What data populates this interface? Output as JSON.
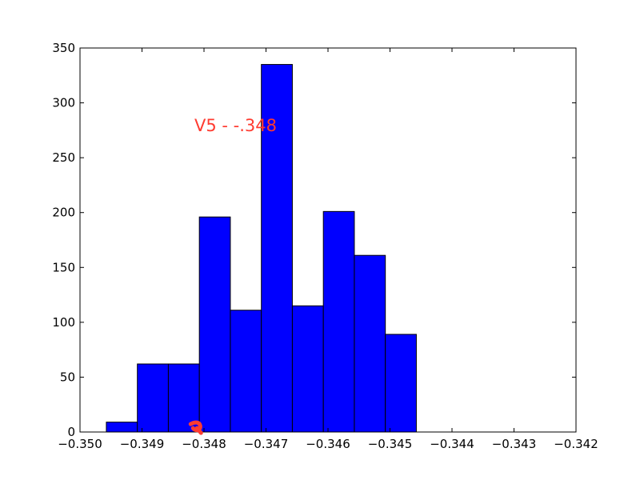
{
  "chart_data": {
    "type": "bar",
    "title": "",
    "xlabel": "",
    "ylabel": "",
    "xlim": [
      -0.35,
      -0.342
    ],
    "ylim": [
      0,
      350
    ],
    "grid": false,
    "x_ticks": [
      -0.35,
      -0.349,
      -0.348,
      -0.347,
      -0.346,
      -0.345,
      -0.344,
      -0.343,
      -0.342
    ],
    "x_tick_labels": [
      "−0.350",
      "−0.349",
      "−0.348",
      "−0.347",
      "−0.346",
      "−0.345",
      "−0.344",
      "−0.343",
      "−0.342"
    ],
    "y_ticks": [
      0,
      50,
      100,
      150,
      200,
      250,
      300,
      350
    ],
    "y_tick_labels": [
      "0",
      "50",
      "100",
      "150",
      "200",
      "250",
      "300",
      "350"
    ],
    "bins": [
      {
        "x0": -0.349575,
        "x1": -0.349075,
        "count": 9
      },
      {
        "x0": -0.349075,
        "x1": -0.348575,
        "count": 62
      },
      {
        "x0": -0.348575,
        "x1": -0.348075,
        "count": 62
      },
      {
        "x0": -0.348075,
        "x1": -0.347575,
        "count": 196
      },
      {
        "x0": -0.347575,
        "x1": -0.347075,
        "count": 111
      },
      {
        "x0": -0.347075,
        "x1": -0.346575,
        "count": 335
      },
      {
        "x0": -0.346575,
        "x1": -0.346075,
        "count": 115
      },
      {
        "x0": -0.346075,
        "x1": -0.345575,
        "count": 201
      },
      {
        "x0": -0.345575,
        "x1": -0.345075,
        "count": 161
      },
      {
        "x0": -0.345075,
        "x1": -0.344575,
        "count": 89
      }
    ],
    "bar_color": "#0000ff",
    "annotation": {
      "text": "V5 - -.348",
      "color": "#ff3b30"
    },
    "marker": {
      "x": -0.3481,
      "y": 5,
      "color": "#ff3b30"
    }
  }
}
